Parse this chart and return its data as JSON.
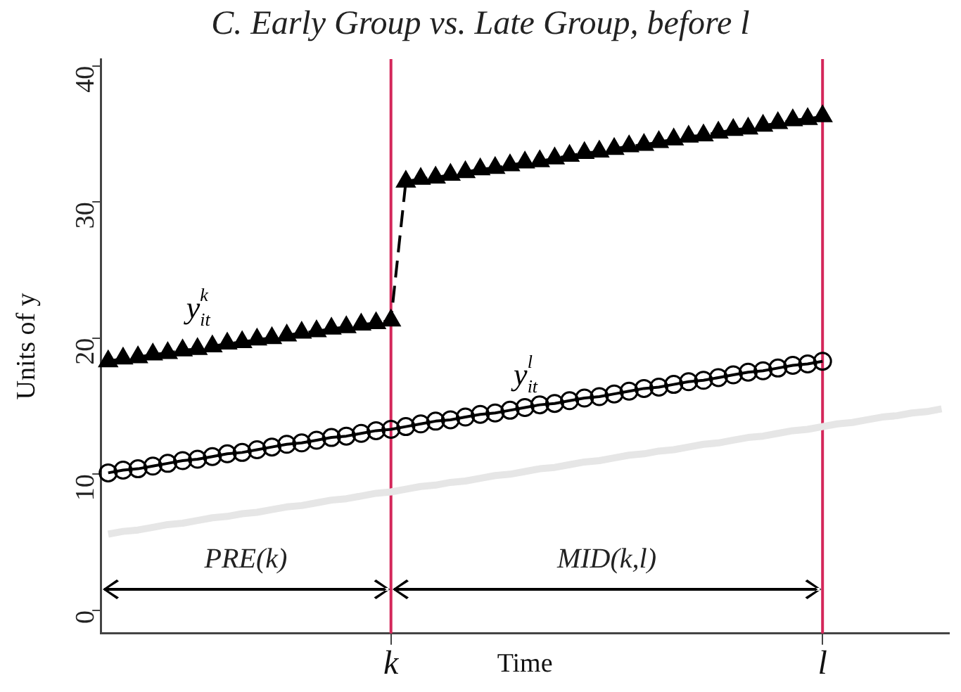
{
  "chart_data": {
    "type": "line",
    "title": "C. Early Group vs. Late Group, before l",
    "xlabel": "Time",
    "ylabel": "Units of y",
    "categories": [
      null,
      null,
      null,
      null,
      null,
      null,
      null,
      null,
      null,
      null,
      null,
      null,
      null,
      null,
      null,
      null,
      null,
      null,
      null,
      "k",
      null,
      null,
      null,
      null,
      null,
      null,
      null,
      null,
      null,
      null,
      null,
      null,
      null,
      null,
      null,
      null,
      null,
      null,
      null,
      null,
      null,
      null,
      null,
      null,
      null,
      null,
      null,
      null,
      "l",
      null,
      null,
      null,
      null,
      null,
      null,
      null,
      null
    ],
    "ylim": [
      -1.7,
      40.5
    ],
    "yticks": [
      0,
      10,
      20,
      30,
      40
    ],
    "grid": false,
    "legend": false,
    "series": [
      {
        "name": "y$^{k}$$_{it}$",
        "color": "#000000",
        "marker": "triangle",
        "line_style": "dashed",
        "values": [
          18.3,
          18.5,
          18.6,
          18.8,
          18.9,
          19.1,
          19.2,
          19.4,
          19.6,
          19.7,
          19.9,
          20.0,
          20.2,
          20.4,
          20.5,
          20.7,
          20.8,
          21.0,
          21.1,
          21.3,
          31.5,
          31.7,
          31.8,
          32.0,
          32.2,
          32.4,
          32.5,
          32.7,
          32.9,
          33.0,
          33.2,
          33.4,
          33.6,
          33.7,
          33.9,
          34.1,
          34.2,
          34.4,
          34.6,
          34.8,
          34.9,
          35.1,
          35.3,
          35.4,
          35.6,
          35.8,
          36.0,
          36.1,
          36.3,
          null,
          null,
          null,
          null,
          null,
          null,
          null,
          null
        ]
      },
      {
        "name": "y$^{l}$$_{it}$",
        "color": "#000000",
        "marker": "circle",
        "line_style": "solid",
        "values": [
          10.1,
          10.3,
          10.4,
          10.6,
          10.8,
          11.0,
          11.1,
          11.3,
          11.5,
          11.6,
          11.8,
          12.0,
          12.2,
          12.3,
          12.5,
          12.7,
          12.8,
          13.0,
          13.2,
          13.3,
          13.5,
          13.7,
          13.9,
          14.0,
          14.2,
          14.4,
          14.5,
          14.7,
          14.9,
          15.1,
          15.2,
          15.4,
          15.6,
          15.7,
          15.9,
          16.1,
          16.3,
          16.4,
          16.6,
          16.8,
          16.9,
          17.1,
          17.3,
          17.5,
          17.6,
          17.8,
          18.0,
          18.1,
          18.3,
          null,
          null,
          null,
          null,
          null,
          null,
          null,
          null
        ]
      },
      {
        "color": "#e6e6e6",
        "marker": "none",
        "line_style": "solid",
        "values": [
          5.6,
          5.8,
          5.9,
          6.1,
          6.3,
          6.4,
          6.6,
          6.8,
          6.9,
          7.1,
          7.2,
          7.4,
          7.6,
          7.7,
          7.9,
          8.1,
          8.2,
          8.4,
          8.6,
          8.7,
          8.9,
          9.1,
          9.2,
          9.4,
          9.5,
          9.7,
          9.9,
          10.0,
          10.2,
          10.4,
          10.5,
          10.7,
          10.9,
          11.0,
          11.2,
          11.4,
          11.5,
          11.7,
          11.8,
          12.0,
          12.2,
          12.3,
          12.5,
          12.7,
          12.8,
          13.0,
          13.2,
          13.3,
          13.5,
          13.7,
          13.8,
          14.0,
          14.2,
          14.3,
          14.5,
          14.6,
          14.8
        ]
      }
    ],
    "ref_lines": [
      {
        "axis": "x",
        "value": "k",
        "color": "#d4275a"
      },
      {
        "axis": "x",
        "value": "l",
        "color": "#d4275a"
      }
    ],
    "annotations": [
      "PRE(k)",
      "MID(k,l)"
    ]
  }
}
